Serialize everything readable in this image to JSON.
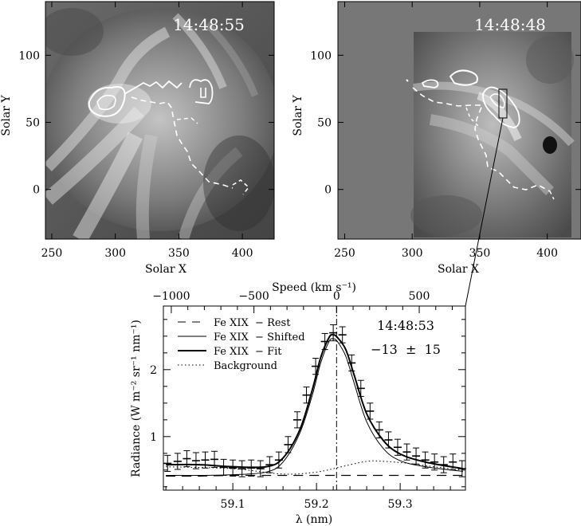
{
  "panels": {
    "left": {
      "timestamp": "14:48:55",
      "xlabel": "Solar X",
      "ylabel": "Solar Y",
      "xticks": [
        "250",
        "300",
        "350",
        "400"
      ],
      "yticks": [
        "0",
        "50",
        "100"
      ],
      "xlim": [
        245,
        425
      ],
      "ylim": [
        -37,
        140
      ]
    },
    "right": {
      "timestamp": "14:48:48",
      "xlabel": "Solar X",
      "ylabel": "Solar Y",
      "xticks": [
        "250",
        "300",
        "350",
        "400"
      ],
      "yticks": [
        "0",
        "50",
        "100"
      ],
      "xlim": [
        245,
        425
      ],
      "ylim": [
        -37,
        140
      ]
    }
  },
  "spectrum": {
    "timestamp": "14:48:53",
    "speed_text": "−13  ±  15",
    "top_axis_label": "Speed (km s⁻¹)",
    "top_ticks": [
      "−1000",
      "−500",
      "0",
      "500"
    ],
    "xlabel": "λ (nm)",
    "ylabel": "Radiance (W m⁻² sr⁻¹ nm⁻¹)",
    "xticks": [
      "59.1",
      "59.2",
      "59.3"
    ],
    "yticks": [
      "1",
      "2"
    ],
    "legend": [
      "Fe XIX  − Rest",
      "Fe XIX  − Shifted",
      "Fe XIX  − Fit",
      "Background"
    ]
  },
  "chart_data": {
    "type": "line",
    "xlabel": "λ (nm)",
    "ylabel": "Radiance (W m⁻² sr⁻¹ nm⁻¹)",
    "xlim": [
      59.017,
      59.378
    ],
    "ylim": [
      0.2,
      2.95
    ],
    "top_axis": {
      "label": "Speed (km s⁻¹)",
      "rest_wavelength": 59.224,
      "ticks": [
        -1000,
        -500,
        0,
        500
      ]
    },
    "rest_wavelength": 59.224,
    "series": [
      {
        "name": "Fe XIX  − Rest",
        "style": "dashed",
        "x": [
          59.02,
          59.06,
          59.1,
          59.14,
          59.17,
          59.19,
          59.205,
          59.215,
          59.22,
          59.225,
          59.235,
          59.25,
          59.27,
          59.3,
          59.33,
          59.375
        ],
        "y": [
          0.41,
          0.41,
          0.42,
          0.42,
          0.42,
          0.42,
          0.42,
          0.42,
          0.42,
          0.42,
          0.42,
          0.42,
          0.42,
          0.42,
          0.42,
          0.42
        ]
      },
      {
        "name": "Fe XIX  − Shifted",
        "style": "thin",
        "x": [
          59.02,
          59.06,
          59.1,
          59.14,
          59.16,
          59.18,
          59.195,
          59.205,
          59.215,
          59.22,
          59.225,
          59.235,
          59.245,
          59.26,
          59.28,
          59.3,
          59.33,
          59.375
        ],
        "y": [
          0.42,
          0.42,
          0.43,
          0.47,
          0.62,
          1.05,
          1.62,
          2.1,
          2.42,
          2.46,
          2.42,
          2.2,
          1.8,
          1.22,
          0.82,
          0.64,
          0.55,
          0.48
        ]
      },
      {
        "name": "Fe XIX  − Fit",
        "style": "thick",
        "x": [
          59.02,
          59.06,
          59.1,
          59.14,
          59.16,
          59.18,
          59.195,
          59.205,
          59.215,
          59.22,
          59.225,
          59.235,
          59.245,
          59.26,
          59.28,
          59.3,
          59.33,
          59.375
        ],
        "y": [
          0.58,
          0.58,
          0.55,
          0.55,
          0.68,
          1.1,
          1.7,
          2.18,
          2.48,
          2.52,
          2.48,
          2.3,
          1.92,
          1.34,
          0.94,
          0.74,
          0.62,
          0.52
        ]
      },
      {
        "name": "Background",
        "style": "dotted",
        "x": [
          59.02,
          59.1,
          59.16,
          59.2,
          59.23,
          59.26,
          59.28,
          59.31,
          59.34,
          59.375
        ],
        "y": [
          0.55,
          0.52,
          0.44,
          0.47,
          0.55,
          0.63,
          0.63,
          0.6,
          0.55,
          0.5
        ]
      },
      {
        "name": "data",
        "x": [
          59.022,
          59.034,
          59.045,
          59.056,
          59.067,
          59.078,
          59.089,
          59.1,
          59.111,
          59.122,
          59.133,
          59.144,
          59.155,
          59.166,
          59.177,
          59.188,
          59.199,
          59.21,
          59.22,
          59.231,
          59.242,
          59.253,
          59.264,
          59.275,
          59.286,
          59.297,
          59.308,
          59.319,
          59.33,
          59.341,
          59.352,
          59.363,
          59.374
        ],
        "y": [
          0.6,
          0.63,
          0.67,
          0.64,
          0.65,
          0.66,
          0.54,
          0.53,
          0.52,
          0.53,
          0.52,
          0.58,
          0.65,
          0.88,
          1.25,
          1.62,
          2.05,
          2.42,
          2.55,
          2.52,
          2.1,
          1.72,
          1.38,
          1.1,
          0.95,
          0.84,
          0.77,
          0.71,
          0.65,
          0.62,
          0.58,
          0.62,
          0.52
        ],
        "error": 0.12
      }
    ]
  },
  "colors": {
    "axis": "#000000",
    "plot_bg": "#ffffff",
    "image_bg": "#777777"
  }
}
